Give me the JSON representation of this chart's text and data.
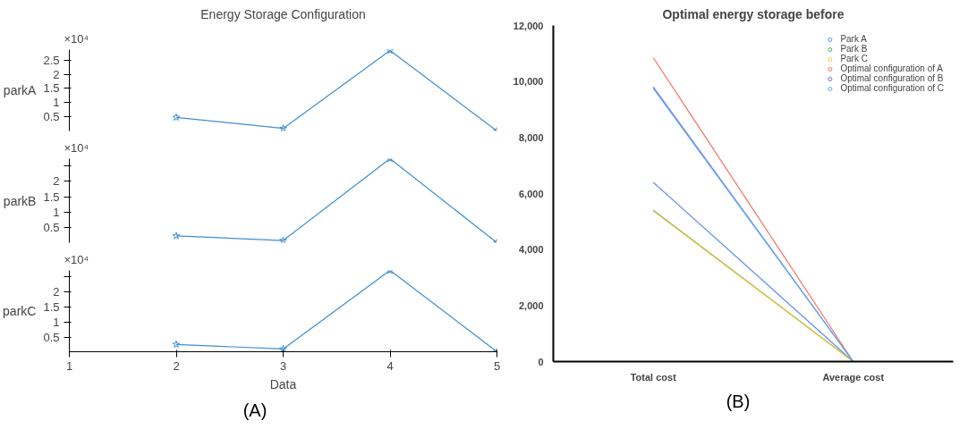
{
  "chart_data": [
    {
      "type": "line",
      "title": "Energy Storage Configuration",
      "ylabel": "parkA",
      "x": [
        2,
        3,
        4,
        5
      ],
      "xlim": [
        1,
        5
      ],
      "xticks": [
        1,
        2,
        3,
        4,
        5
      ],
      "tick_labels": "y",
      "series": [
        {
          "color": "#3d8fd1",
          "values": [
            0.48,
            0.09,
            2.84,
            0
          ]
        }
      ],
      "ylim": [
        0,
        2.87
      ],
      "yticks": [
        0.5,
        1,
        1.5,
        2,
        2.5
      ],
      "marker": "star",
      "grid": false,
      "annotations": [
        "×10⁴"
      ]
    },
    {
      "type": "line",
      "ylabel": "parkB",
      "x": [
        2,
        3,
        4,
        5
      ],
      "xlim": [
        1,
        5
      ],
      "xticks": [
        1,
        2,
        3,
        4,
        5
      ],
      "tick_labels": "y",
      "series": [
        {
          "color": "#3d8fd1",
          "values": [
            0.23,
            0.08,
            2.74,
            0.01
          ]
        }
      ],
      "ylim": [
        0.01,
        2.74
      ],
      "yticks": [
        0.5,
        1,
        1.5,
        2,
        {
          "value": 2.5,
          "label": null
        }
      ],
      "marker": "star",
      "grid": false,
      "annotations": [
        "×10⁴"
      ]
    },
    {
      "type": "line",
      "ylabel": "parkC",
      "xlabel": "Data",
      "x": [
        2,
        3,
        4,
        5
      ],
      "xlim": [
        1,
        5
      ],
      "xticks": [
        1,
        2,
        3,
        4,
        5
      ],
      "series": [
        {
          "color": "#3d8fd1",
          "values": [
            0.28,
            0.13,
            2.7,
            0.04
          ]
        }
      ],
      "ylim": [
        0.04,
        2.7
      ],
      "yticks": [
        0.5,
        1,
        1.5,
        2,
        {
          "value": 2.5,
          "label": null
        }
      ],
      "marker": "star",
      "grid": false,
      "annotations": [
        "×10⁴",
        "(A)"
      ]
    },
    {
      "type": "line",
      "title": "Optimal energy storage before",
      "categories": [
        "Total cost",
        "Average cost"
      ],
      "series": [
        {
          "name": "Park A",
          "color": "#5b8def",
          "values": [
            6400,
            0
          ]
        },
        {
          "name": "Park B",
          "color": "#3cb371",
          "values": [
            5400,
            0
          ]
        },
        {
          "name": "Park C",
          "color": "#f5c342",
          "values": [
            5380,
            0
          ]
        },
        {
          "name": "Optimal configuration of A",
          "color": "#f4725f",
          "values": [
            10850,
            0
          ]
        },
        {
          "name": "Optimal configuration of B",
          "color": "#7b68ee",
          "values": [
            9800,
            0
          ]
        },
        {
          "name": "Optimal configuration of C",
          "color": "#5ab1ef",
          "values": [
            9750,
            0
          ]
        }
      ],
      "ylim": [
        0,
        12000
      ],
      "yticks": [
        0,
        {
          "value": 2000,
          "label": "2,000"
        },
        {
          "value": 4000,
          "label": "4,000"
        },
        {
          "value": 6000,
          "label": "6,000"
        },
        {
          "value": 8000,
          "label": "8,000"
        },
        {
          "value": 10000,
          "label": "10,000"
        },
        {
          "value": 12000,
          "label": "12,000"
        }
      ],
      "legend": "top right",
      "grid": false,
      "annotations": [
        "(B)"
      ]
    }
  ]
}
